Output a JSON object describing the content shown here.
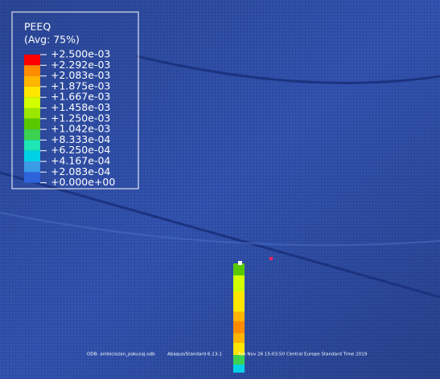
{
  "legend": {
    "title": "PEEQ",
    "subtitle": "(Avg: 75%)",
    "labels": [
      "+2.500e-03",
      "+2.292e-03",
      "+2.083e-03",
      "+1.875e-03",
      "+1.667e-03",
      "+1.458e-03",
      "+1.250e-03",
      "+1.042e-03",
      "+8.333e-04",
      "+6.250e-04",
      "+4.167e-04",
      "+2.083e-04",
      "+0.000e+00"
    ],
    "colors": [
      "#ff0000",
      "#ff8c00",
      "#ffb400",
      "#ffe600",
      "#d2ff00",
      "#9be600",
      "#5ac800",
      "#3cd250",
      "#1ee6b4",
      "#00d2e6",
      "#3c9be6",
      "#2d64dc"
    ]
  },
  "footer": {
    "odb": "ODB: ambiciozan_pokusaj.odb",
    "version": "Abaqus/Standard 6.13-1",
    "date": "Tue Nov 26 15:03:50 Central Europe Standard Time 2019"
  }
}
